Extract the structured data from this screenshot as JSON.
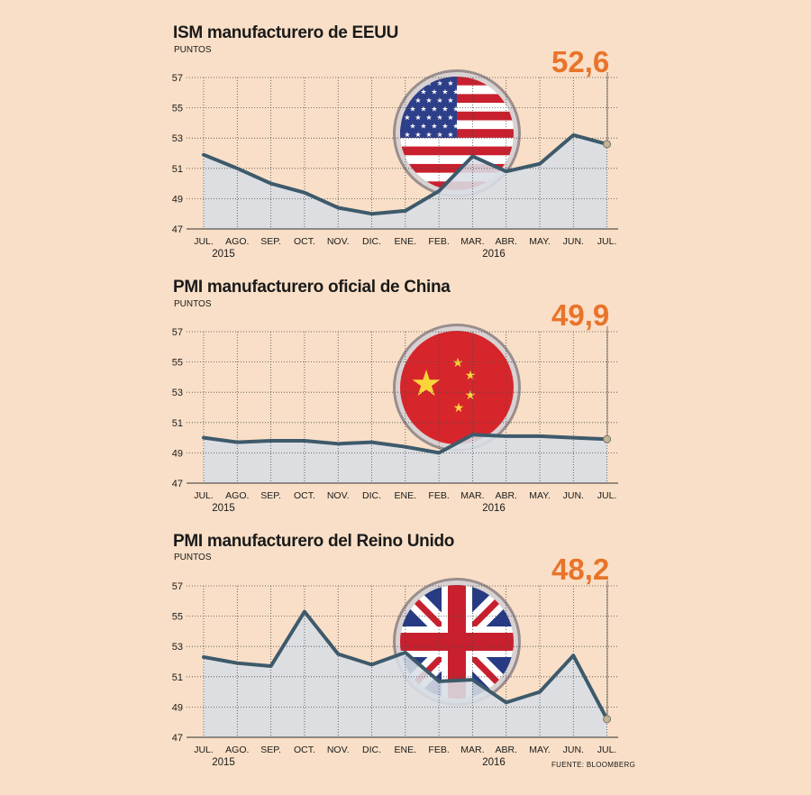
{
  "source": "FUENTE: BLOOMBERG",
  "colors": {
    "line": "#3d5a6b",
    "area": "#d8dee6",
    "grid": "#4a4a4a",
    "highlight": "#e8742b",
    "background": "#f9dfc7"
  },
  "chart_data": [
    {
      "type": "area",
      "title": "ISM manufacturero de EEUU",
      "subtitle": "PUNTOS",
      "last_value_label": "52,6",
      "flag_icon": "usa-flag-icon",
      "categories": [
        "JUL.",
        "AGO.",
        "SEP.",
        "OCT.",
        "NOV.",
        "DIC.",
        "ENE.",
        "FEB.",
        "MAR.",
        "ABR.",
        "MAY.",
        "JUN.",
        "JUL."
      ],
      "year_labels": [
        "2015",
        "2016"
      ],
      "values": [
        51.9,
        51.0,
        50.0,
        49.4,
        48.4,
        48.0,
        48.2,
        49.5,
        51.8,
        50.8,
        51.3,
        53.2,
        52.6
      ],
      "yticks": [
        "57",
        "55",
        "53",
        "51",
        "49",
        "47"
      ],
      "ylim": [
        47,
        57
      ],
      "grid": true
    },
    {
      "type": "area",
      "title": "PMI manufacturero oficial de China",
      "subtitle": "PUNTOS",
      "last_value_label": "49,9",
      "flag_icon": "china-flag-icon",
      "categories": [
        "JUL.",
        "AGO.",
        "SEP.",
        "OCT.",
        "NOV.",
        "DIC.",
        "ENE.",
        "FEB.",
        "MAR.",
        "ABR.",
        "MAY.",
        "JUN.",
        "JUL."
      ],
      "year_labels": [
        "2015",
        "2016"
      ],
      "values": [
        50.0,
        49.7,
        49.8,
        49.8,
        49.6,
        49.7,
        49.4,
        49.0,
        50.2,
        50.1,
        50.1,
        50.0,
        49.9
      ],
      "yticks": [
        "57",
        "55",
        "53",
        "51",
        "49",
        "47"
      ],
      "ylim": [
        47,
        57
      ],
      "grid": true
    },
    {
      "type": "area",
      "title": "PMI manufacturero del Reino Unido",
      "subtitle": "PUNTOS",
      "last_value_label": "48,2",
      "flag_icon": "uk-flag-icon",
      "categories": [
        "JUL.",
        "AGO.",
        "SEP.",
        "OCT.",
        "NOV.",
        "DIC.",
        "ENE.",
        "FEB.",
        "MAR.",
        "ABR.",
        "MAY.",
        "JUN.",
        "JUL."
      ],
      "year_labels": [
        "2015",
        "2016"
      ],
      "values": [
        52.3,
        51.9,
        51.7,
        55.3,
        52.5,
        51.8,
        52.6,
        50.7,
        50.8,
        49.3,
        50.0,
        52.4,
        48.2
      ],
      "yticks": [
        "57",
        "55",
        "53",
        "51",
        "49",
        "47"
      ],
      "ylim": [
        47,
        57
      ],
      "grid": true
    }
  ]
}
